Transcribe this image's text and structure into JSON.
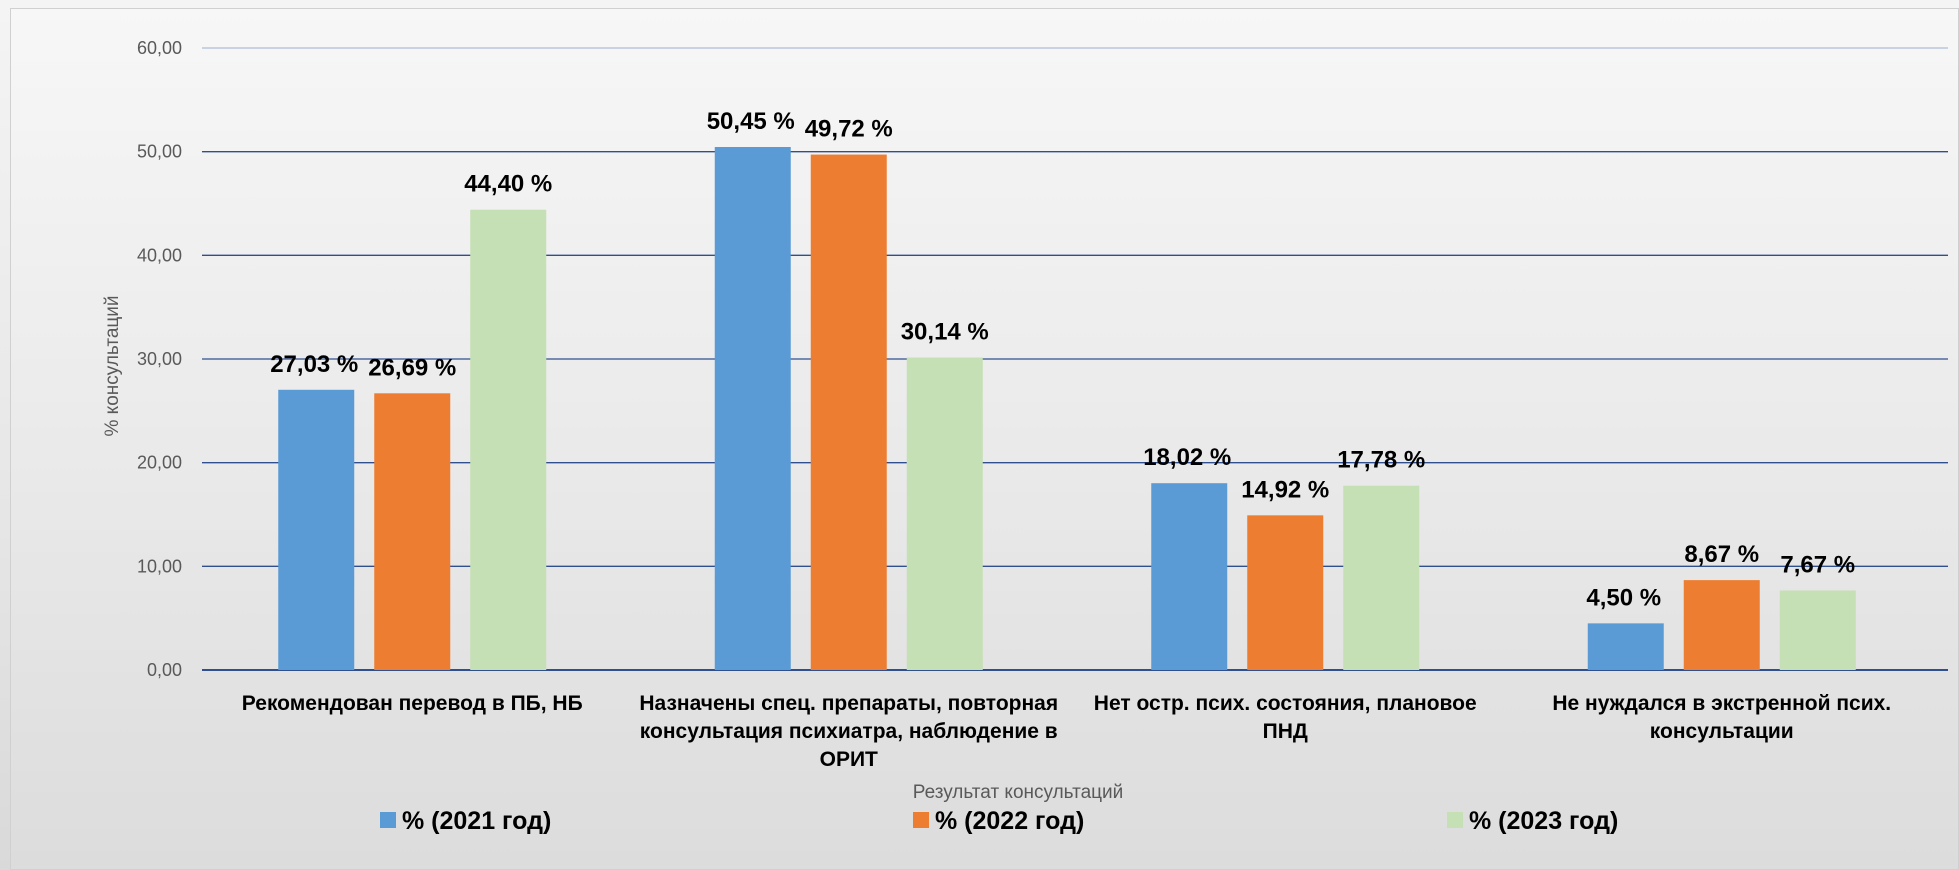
{
  "chart_data": {
    "type": "bar",
    "categories": [
      [
        "Рекомендован перевод в ПБ, НБ"
      ],
      [
        "Назначены спец. препараты, повторная",
        "консультация психиатра, наблюдение в",
        "ОРИТ"
      ],
      [
        "Нет остр. псих. состояния, плановое",
        "ПНД"
      ],
      [
        "Не нуждался в экстренной псих.",
        "консультации"
      ]
    ],
    "series": [
      {
        "name": "% (2021 год)",
        "color": "#5b9bd5",
        "values": [
          27.03,
          50.45,
          18.02,
          4.5
        ],
        "labels": [
          "27,03 %",
          "50,45 %",
          "18,02 %",
          "4,50 %"
        ]
      },
      {
        "name": "% (2022 год)",
        "color": "#ed7d31",
        "values": [
          26.69,
          49.72,
          14.92,
          8.67
        ],
        "labels": [
          "26,69 %",
          "49,72 %",
          "14,92 %",
          "8,67 %"
        ]
      },
      {
        "name": "% (2023 год)",
        "color": "#c5e0b4",
        "values": [
          44.4,
          30.14,
          17.78,
          7.67
        ],
        "labels": [
          "44,40 %",
          "30,14 %",
          "17,78 %",
          "7,67 %"
        ]
      }
    ],
    "yticks": [
      "0,00",
      "10,00",
      "20,00",
      "30,00",
      "40,00",
      "50,00",
      "60,00"
    ],
    "ylim": [
      0,
      60
    ],
    "xlabel": "Результат консультаций",
    "ylabel": "% консультаций",
    "grid": true,
    "grid_color": "#2f4f8f",
    "legend_position": "bottom"
  }
}
